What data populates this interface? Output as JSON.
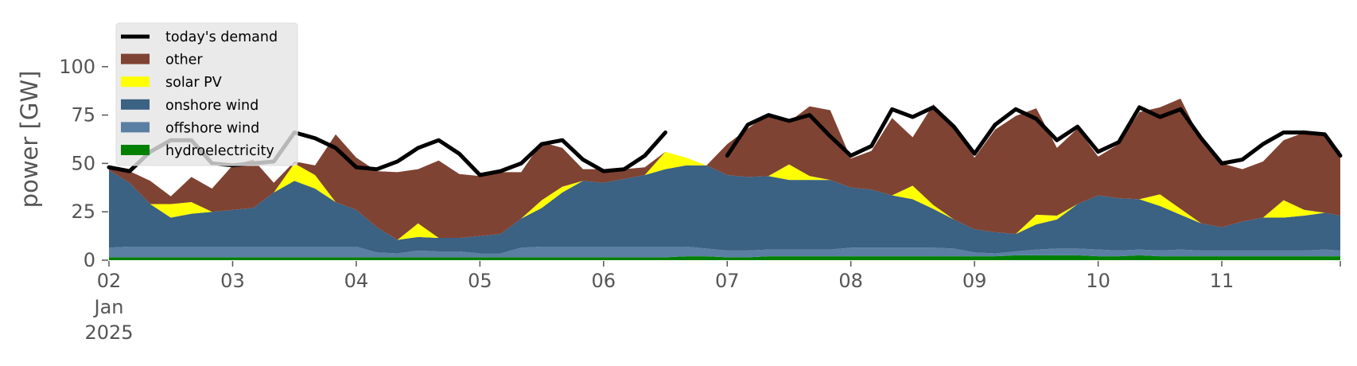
{
  "chart_data": {
    "type": "area",
    "title": "",
    "ylabel": "power [GW]",
    "xlabel": "",
    "ylim": [
      0,
      118
    ],
    "xlim": [
      "2025-01-02T00:00",
      "2025-01-11T23:00"
    ],
    "grid": false,
    "legend_position": "top-left",
    "x_ticks": [
      {
        "date": "2025-01-02",
        "label": "02",
        "sub1": "Jan",
        "sub2": "2025"
      },
      {
        "date": "2025-01-03",
        "label": "03"
      },
      {
        "date": "2025-01-04",
        "label": "04"
      },
      {
        "date": "2025-01-05",
        "label": "05"
      },
      {
        "date": "2025-01-06",
        "label": "06"
      },
      {
        "date": "2025-01-07",
        "label": "07"
      },
      {
        "date": "2025-01-08",
        "label": "08"
      },
      {
        "date": "2025-01-09",
        "label": "09"
      },
      {
        "date": "2025-01-10",
        "label": "10"
      },
      {
        "date": "2025-01-11",
        "label": "11"
      }
    ],
    "y_ticks": [
      0,
      25,
      50,
      75,
      100
    ],
    "x_times": [
      "2025-01-02T00:00",
      "2025-01-02T04:00",
      "2025-01-02T08:00",
      "2025-01-02T12:00",
      "2025-01-02T16:00",
      "2025-01-02T20:00",
      "2025-01-03T00:00",
      "2025-01-03T04:00",
      "2025-01-03T08:00",
      "2025-01-03T12:00",
      "2025-01-03T16:00",
      "2025-01-03T20:00",
      "2025-01-04T00:00",
      "2025-01-04T04:00",
      "2025-01-04T08:00",
      "2025-01-04T12:00",
      "2025-01-04T16:00",
      "2025-01-04T20:00",
      "2025-01-05T00:00",
      "2025-01-05T04:00",
      "2025-01-05T08:00",
      "2025-01-05T12:00",
      "2025-01-05T16:00",
      "2025-01-05T20:00",
      "2025-01-06T00:00",
      "2025-01-06T04:00",
      "2025-01-06T08:00",
      "2025-01-06T12:00",
      "2025-01-06T16:00",
      "2025-01-06T20:00",
      "2025-01-07T00:00",
      "2025-01-07T04:00",
      "2025-01-07T08:00",
      "2025-01-07T12:00",
      "2025-01-07T16:00",
      "2025-01-07T20:00",
      "2025-01-08T00:00",
      "2025-01-08T04:00",
      "2025-01-08T08:00",
      "2025-01-08T12:00",
      "2025-01-08T16:00",
      "2025-01-08T20:00",
      "2025-01-09T00:00",
      "2025-01-09T04:00",
      "2025-01-09T08:00",
      "2025-01-09T12:00",
      "2025-01-09T16:00",
      "2025-01-09T20:00",
      "2025-01-10T00:00",
      "2025-01-10T04:00",
      "2025-01-10T08:00",
      "2025-01-10T12:00",
      "2025-01-10T16:00",
      "2025-01-10T20:00",
      "2025-01-11T00:00",
      "2025-01-11T04:00",
      "2025-01-11T08:00",
      "2025-01-11T12:00",
      "2025-01-11T16:00",
      "2025-01-11T20:00",
      "2025-01-11T23:00"
    ],
    "series": [
      {
        "name": "hydroelectricity",
        "color": "#008000",
        "values": [
          1.5,
          1.5,
          1.5,
          1.5,
          1.5,
          1.5,
          1.5,
          1.5,
          1.5,
          1.5,
          1.5,
          1.5,
          1.5,
          1.5,
          1.5,
          1.5,
          1.5,
          1.5,
          1.5,
          1.5,
          1.5,
          1.5,
          1.5,
          1.5,
          1.5,
          1.5,
          1.5,
          1.5,
          2,
          2,
          1.5,
          1.5,
          2,
          2,
          2,
          2,
          2,
          2,
          2,
          2,
          2,
          2,
          2,
          2,
          2.5,
          2.5,
          2.5,
          2.5,
          2,
          2,
          2.5,
          2,
          2,
          2,
          2,
          2,
          2,
          2,
          2,
          2,
          2
        ]
      },
      {
        "name": "offshore wind",
        "color": "#5b7fa3",
        "values": [
          5,
          5.5,
          5.5,
          5.5,
          5.5,
          5.5,
          5.5,
          5.5,
          5.5,
          5.5,
          5.5,
          5.5,
          5.5,
          2.5,
          2,
          3.5,
          3,
          3,
          2,
          2,
          5,
          5.5,
          5.5,
          5.5,
          5.5,
          5.5,
          5.5,
          5.5,
          5,
          4,
          3.5,
          3.5,
          3.5,
          3.5,
          3.5,
          3.5,
          4.5,
          4.5,
          4.5,
          4.5,
          4.5,
          4,
          2,
          1.5,
          2,
          3,
          3.5,
          3.5,
          3.5,
          3,
          3,
          3,
          3.5,
          3,
          3,
          3,
          3,
          3,
          3,
          3.5,
          3
        ]
      },
      {
        "name": "onshore wind",
        "color": "#3b6183",
        "values": [
          40,
          33,
          22,
          15,
          17,
          18,
          19,
          20,
          28,
          34,
          30,
          23,
          19,
          13,
          7,
          7,
          7,
          7,
          9,
          10,
          15,
          20,
          28,
          34,
          33,
          35,
          37,
          40,
          42,
          43,
          39,
          38,
          38,
          36,
          36,
          36,
          31,
          30,
          27,
          25,
          20,
          15,
          12,
          11,
          9,
          13,
          15,
          23,
          28,
          27,
          26,
          23,
          18,
          14,
          12,
          15,
          17,
          17,
          18,
          19,
          18
        ]
      },
      {
        "name": "solar PV",
        "color": "#ffff00",
        "values": [
          0,
          0,
          0,
          7,
          6,
          0,
          0,
          0,
          0,
          9,
          7,
          0,
          0,
          0,
          0,
          7,
          0,
          0,
          0,
          0,
          0,
          4,
          3,
          0,
          0,
          0,
          0,
          9,
          4,
          0,
          0,
          0,
          0,
          8,
          2,
          0,
          0,
          0,
          0,
          7,
          2,
          0,
          0,
          0,
          0,
          5,
          2,
          0,
          0,
          0,
          0,
          6,
          3,
          0,
          0,
          0,
          0,
          9,
          3,
          0,
          0
        ]
      },
      {
        "name": "other",
        "color": "#7f4333",
        "values": [
          1.5,
          6,
          12,
          4,
          13,
          12,
          23,
          25,
          5,
          1,
          5,
          35,
          27,
          29,
          35,
          28,
          40,
          33,
          31,
          32,
          24,
          30,
          20,
          6,
          7,
          5,
          4,
          0,
          0,
          0,
          16,
          25,
          32,
          22,
          36,
          36,
          15,
          20,
          40,
          25,
          52,
          48,
          37,
          53,
          61,
          55,
          35,
          39,
          20,
          28,
          45,
          45,
          57,
          43,
          33,
          27,
          29,
          31,
          40,
          40,
          33
        ]
      },
      {
        "name": "today's demand",
        "color": "#000000",
        "type": "line",
        "values": [
          48,
          46,
          56,
          62,
          62,
          50,
          49,
          50,
          51,
          66,
          63,
          58,
          48,
          47,
          51,
          58,
          62,
          55,
          44,
          46,
          50,
          60,
          62,
          52,
          46,
          47,
          54,
          66,
          null,
          null,
          54,
          70,
          75,
          72,
          75,
          64,
          54,
          59,
          78,
          74,
          79,
          69,
          55,
          70,
          78,
          73,
          62,
          69,
          56,
          61,
          79,
          74,
          78,
          63,
          50,
          52,
          60,
          66,
          66,
          65,
          54
        ]
      }
    ]
  }
}
